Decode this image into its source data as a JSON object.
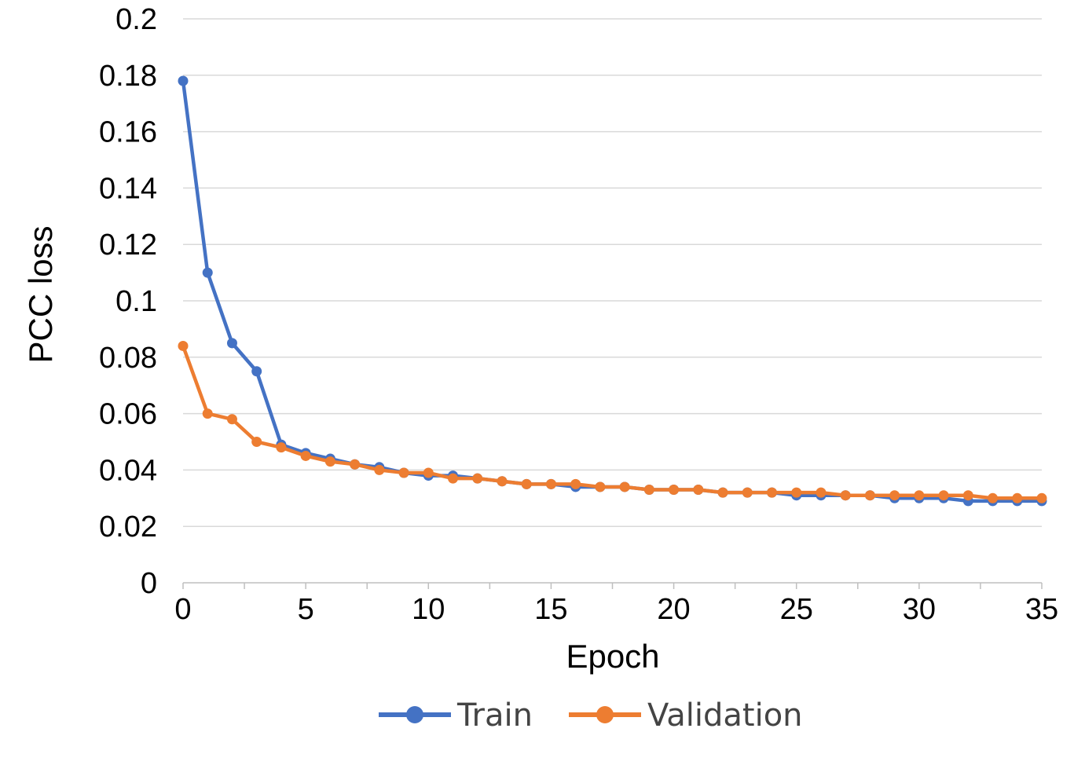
{
  "chart_data": {
    "type": "line",
    "xlabel": "Epoch",
    "ylabel": "PCC loss",
    "xlim": [
      0,
      35
    ],
    "ylim": [
      0,
      0.2
    ],
    "x_ticks": [
      0,
      5,
      10,
      15,
      20,
      25,
      30,
      35
    ],
    "y_ticks": [
      0,
      0.02,
      0.04,
      0.06,
      0.08,
      0.1,
      0.12,
      0.14,
      0.16,
      0.18,
      0.2
    ],
    "y_tick_labels": [
      "0",
      "0.02",
      "0.04",
      "0.06",
      "0.08",
      "0.1",
      "0.12",
      "0.14",
      "0.16",
      "0.18",
      "0.2"
    ],
    "grid": "horizontal",
    "legend_position": "bottom",
    "x": [
      0,
      1,
      2,
      3,
      4,
      5,
      6,
      7,
      8,
      9,
      10,
      11,
      12,
      13,
      14,
      15,
      16,
      17,
      18,
      19,
      20,
      21,
      22,
      23,
      24,
      25,
      26,
      27,
      28,
      29,
      30,
      31,
      32,
      33,
      34,
      35
    ],
    "series": [
      {
        "name": "Train",
        "color": "#4472c4",
        "values": [
          0.178,
          0.11,
          0.085,
          0.075,
          0.049,
          0.046,
          0.044,
          0.042,
          0.041,
          0.039,
          0.038,
          0.038,
          0.037,
          0.036,
          0.035,
          0.035,
          0.034,
          0.034,
          0.034,
          0.033,
          0.033,
          0.033,
          0.032,
          0.032,
          0.032,
          0.031,
          0.031,
          0.031,
          0.031,
          0.03,
          0.03,
          0.03,
          0.029,
          0.029,
          0.029,
          0.029
        ]
      },
      {
        "name": "Validation",
        "color": "#ed7d31",
        "values": [
          0.084,
          0.06,
          0.058,
          0.05,
          0.048,
          0.045,
          0.043,
          0.042,
          0.04,
          0.039,
          0.039,
          0.037,
          0.037,
          0.036,
          0.035,
          0.035,
          0.035,
          0.034,
          0.034,
          0.033,
          0.033,
          0.033,
          0.032,
          0.032,
          0.032,
          0.032,
          0.032,
          0.031,
          0.031,
          0.031,
          0.031,
          0.031,
          0.031,
          0.03,
          0.03,
          0.03
        ]
      }
    ]
  }
}
